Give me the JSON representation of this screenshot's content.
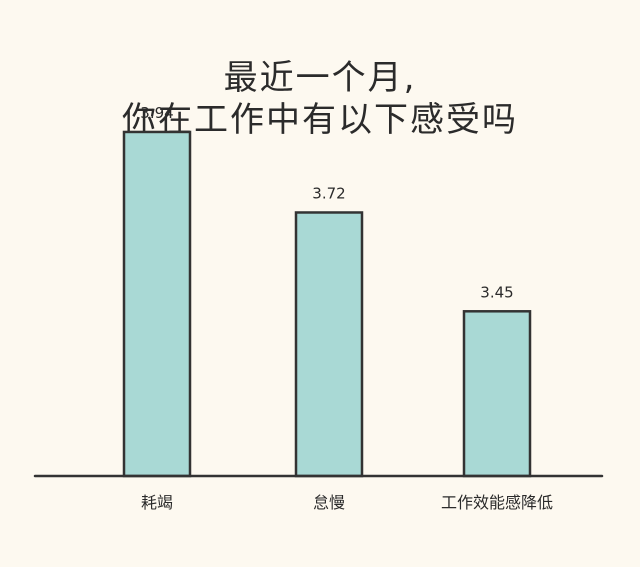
{
  "colors": {
    "background": "#fdf9f0",
    "bar_fill": "#a9d9d5",
    "bar_stroke": "#333333",
    "text": "#2b2b2b"
  },
  "chart_data": {
    "type": "bar",
    "title_lines": [
      "最近一个月,",
      "你在工作中有以下感受吗"
    ],
    "categories": [
      "耗竭",
      "怠慢",
      "工作效能感降低"
    ],
    "values": [
      3.94,
      3.72,
      3.45
    ],
    "value_labels": [
      "3.94",
      "3.72",
      "3.45"
    ],
    "xlabel": "",
    "ylabel": "",
    "ylim": [
      3.0,
      4.0
    ],
    "grid": false,
    "legend": "none"
  }
}
